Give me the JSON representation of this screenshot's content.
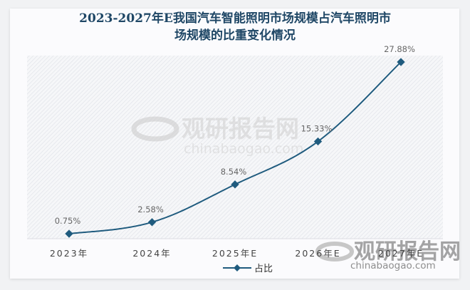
{
  "title": {
    "line1": "2023-2027年E我国汽车智能照明市场规模占汽车照明市",
    "line2": "场规模的比重变化情况"
  },
  "legend": {
    "label": "占比",
    "color": "#1f5b7e"
  },
  "watermark": {
    "brand": "观研报告网",
    "url": "chinabaogao.com"
  },
  "colors": {
    "line": "#1f5b7e",
    "marker": "#1f5b7e",
    "plot_bg": "#f3f4f7",
    "title": "#1f4766"
  },
  "chart_data": {
    "type": "line",
    "title": "2023-2027年E我国汽车智能照明市场规模占汽车照明市场规模的比重变化情况",
    "categories": [
      "2023年",
      "2024年",
      "2025年E",
      "2026年E",
      "2027年E"
    ],
    "series": [
      {
        "name": "占比",
        "values": [
          0.75,
          2.58,
          8.54,
          15.33,
          27.88
        ],
        "labels": [
          "0.75%",
          "2.58%",
          "8.54%",
          "15.33%",
          "27.88%"
        ]
      }
    ],
    "xlabel": "",
    "ylabel": "",
    "ylim": [
      0,
      30
    ],
    "grid": false,
    "legend_position": "bottom",
    "y_axis_visible": false
  }
}
